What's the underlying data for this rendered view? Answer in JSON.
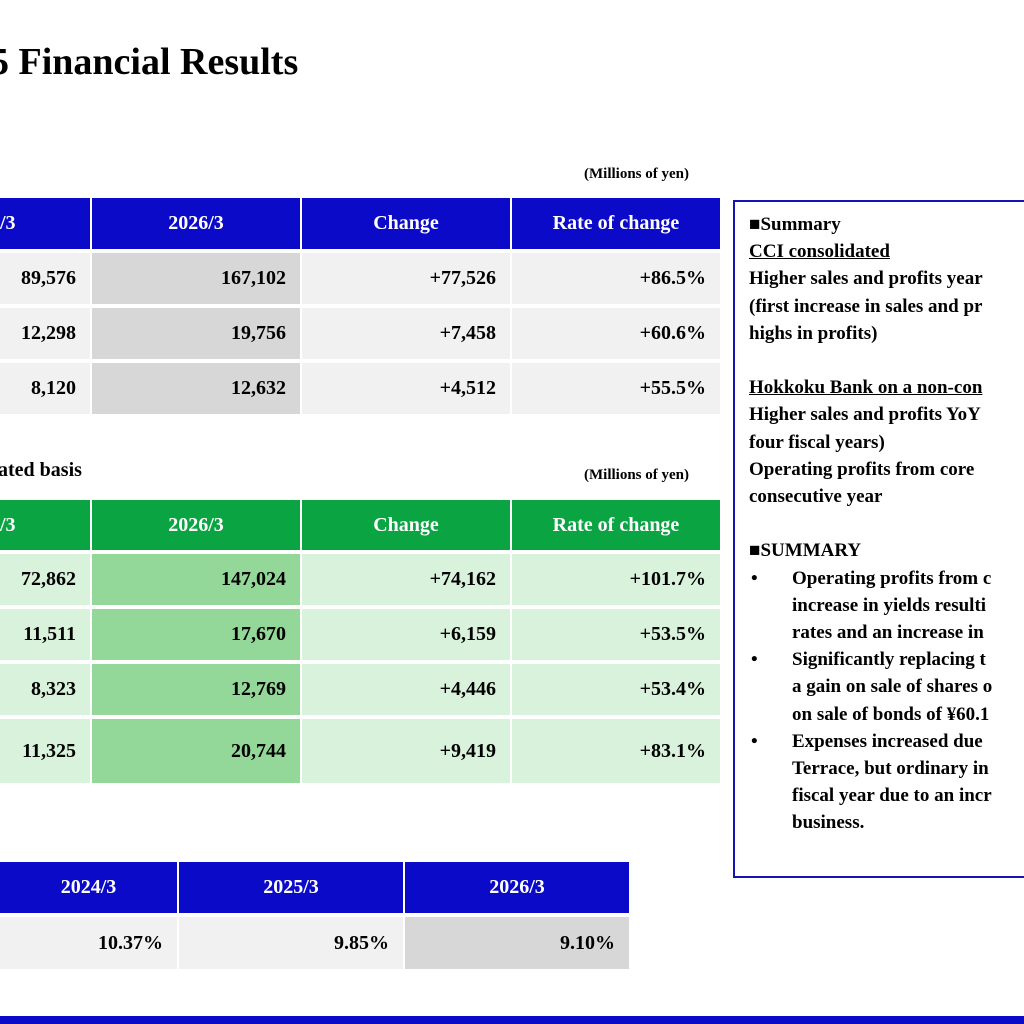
{
  "title": "5 Financial Results",
  "unit_label": "(Millions of yen)",
  "table1": {
    "headers": [
      "/3",
      "2026/3",
      "Change",
      "Rate of change"
    ],
    "rows": [
      [
        "89,576",
        "167,102",
        "+77,526",
        "+86.5%"
      ],
      [
        "12,298",
        "19,756",
        "+7,458",
        "+60.6%"
      ],
      [
        "8,120",
        "12,632",
        "+4,512",
        "+55.5%"
      ]
    ]
  },
  "section2_label": "ated basis",
  "table2": {
    "headers": [
      "/3",
      "2026/3",
      "Change",
      "Rate of change"
    ],
    "rows": [
      [
        "72,862",
        "147,024",
        "+74,162",
        "+101.7%"
      ],
      [
        "11,511",
        "17,670",
        "+6,159",
        "+53.5%"
      ],
      [
        "8,323",
        "12,769",
        "+4,446",
        "+53.4%"
      ],
      [
        "11,325",
        "20,744",
        "+9,419",
        "+83.1%"
      ]
    ]
  },
  "table3": {
    "headers": [
      "2024/3",
      "2025/3",
      "2026/3"
    ],
    "values": [
      "10.37%",
      "9.85%",
      "9.10%"
    ]
  },
  "summary": {
    "heading1": "■Summary",
    "sub1": "CCI consolidated",
    "p1": [
      "Higher sales and profits year",
      "(first increase in sales and pr",
      "highs in profits)"
    ],
    "sub2": "Hokkoku Bank on a non-con",
    "p2": [
      "Higher sales and profits YoY",
      "four fiscal years)",
      "Operating profits from core",
      "consecutive year"
    ],
    "heading2": "■SUMMARY",
    "bullet_char": "•",
    "bullets": [
      [
        "Operating profits from c",
        "increase in yields resulti",
        "rates and an increase in"
      ],
      [
        "Significantly replacing t",
        "a gain on sale of shares o",
        "on sale of bonds of ¥60.1"
      ],
      [
        "Expenses increased due",
        "Terrace, but ordinary in",
        "fiscal year due to an incr",
        "business."
      ]
    ]
  },
  "colors": {
    "header_blue": "#0a0ac8",
    "header_green": "#0aa443",
    "summary_border": "#1414b4"
  }
}
